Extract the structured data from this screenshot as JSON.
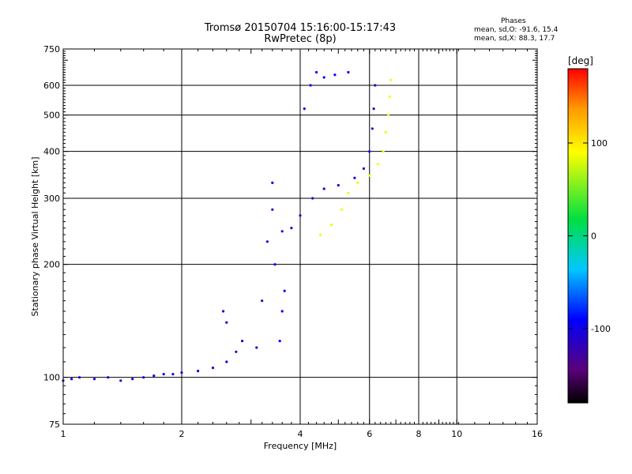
{
  "header": {
    "title": "Tromsø 20150704 15:16:00-15:17:43",
    "subtitle": "RwPretec (8p)"
  },
  "phase_info": {
    "heading": "Phases",
    "line_o": "mean, sd,O: -91.6, 15.4",
    "line_x": "mean, sd,X:  88.3, 17.7"
  },
  "colorbar": {
    "unit": "[deg]",
    "ticks": [
      100,
      0,
      -100
    ],
    "range": [
      -180,
      180
    ]
  },
  "chart_data": {
    "type": "scatter",
    "title": "Tromsø 20150704 15:16:00-15:17:43",
    "subtitle": "RwPretec (8p)",
    "xlabel": "Frequency [MHz]",
    "ylabel": "Stationary phase Virtual Height [km]",
    "xscale": "log",
    "yscale": "log",
    "xlim": [
      1,
      16
    ],
    "ylim": [
      75,
      750
    ],
    "x_ticks": [
      1,
      2,
      4,
      6,
      8,
      10,
      16
    ],
    "x_tick_labels": [
      "1",
      "2",
      "4",
      "6",
      "8",
      "10",
      "16"
    ],
    "y_ticks": [
      75,
      100,
      200,
      300,
      400,
      500,
      600,
      750
    ],
    "y_tick_labels": [
      "75",
      "100",
      "200",
      "300",
      "400",
      "500",
      "600",
      "750"
    ],
    "grid": true,
    "colorbar_label": "[deg]",
    "color_range": [
      -180,
      180
    ],
    "series": [
      {
        "points": [
          [
            1.0,
            98,
            -100
          ],
          [
            1.05,
            99,
            -100
          ],
          [
            1.1,
            100,
            -100
          ],
          [
            1.2,
            99,
            -100
          ],
          [
            1.3,
            100,
            -100
          ],
          [
            1.4,
            98,
            -100
          ],
          [
            1.5,
            99,
            -100
          ],
          [
            1.6,
            100,
            -100
          ],
          [
            1.7,
            101,
            -100
          ],
          [
            1.8,
            102,
            -100
          ],
          [
            1.9,
            102,
            -100
          ],
          [
            2.0,
            103,
            -100
          ],
          [
            2.2,
            104,
            -100
          ],
          [
            2.4,
            106,
            -100
          ],
          [
            2.6,
            110,
            -100
          ],
          [
            2.75,
            117,
            -100
          ],
          [
            2.85,
            125,
            -100
          ],
          [
            2.6,
            140,
            -100
          ],
          [
            2.55,
            150,
            -100
          ]
        ]
      },
      {
        "points": [
          [
            3.1,
            120,
            -110
          ],
          [
            3.2,
            160,
            -110
          ],
          [
            3.3,
            230,
            -110
          ],
          [
            3.4,
            280,
            -110
          ],
          [
            3.6,
            245,
            -110
          ],
          [
            3.8,
            250,
            -110
          ],
          [
            4.0,
            270,
            -110
          ],
          [
            4.3,
            300,
            -110
          ],
          [
            4.6,
            318,
            -110
          ],
          [
            5.0,
            325,
            -110
          ],
          [
            5.5,
            340,
            -110
          ],
          [
            5.8,
            360,
            -110
          ],
          [
            6.0,
            400,
            -110
          ],
          [
            6.1,
            460,
            -110
          ],
          [
            6.15,
            520,
            -110
          ],
          [
            6.2,
            600,
            -110
          ]
        ]
      },
      {
        "points": [
          [
            3.55,
            125,
            -90
          ],
          [
            3.6,
            150,
            -90
          ],
          [
            3.65,
            170,
            -90
          ],
          [
            3.4,
            330,
            -90
          ],
          [
            3.45,
            200,
            -90
          ]
        ]
      },
      {
        "points": [
          [
            4.1,
            520,
            -90
          ],
          [
            4.25,
            600,
            -90
          ],
          [
            4.4,
            650,
            -90
          ],
          [
            4.6,
            630,
            -90
          ],
          [
            4.9,
            640,
            -90
          ],
          [
            5.3,
            650,
            -90
          ]
        ]
      },
      {
        "points": [
          [
            4.5,
            240,
            85
          ],
          [
            4.8,
            255,
            85
          ],
          [
            5.1,
            280,
            85
          ],
          [
            5.3,
            310,
            85
          ],
          [
            5.6,
            330,
            85
          ],
          [
            6.0,
            345,
            85
          ],
          [
            6.3,
            370,
            85
          ],
          [
            6.5,
            400,
            85
          ],
          [
            6.6,
            450,
            85
          ],
          [
            6.7,
            500,
            85
          ],
          [
            6.75,
            560,
            85
          ],
          [
            6.8,
            620,
            85
          ]
        ]
      }
    ]
  }
}
